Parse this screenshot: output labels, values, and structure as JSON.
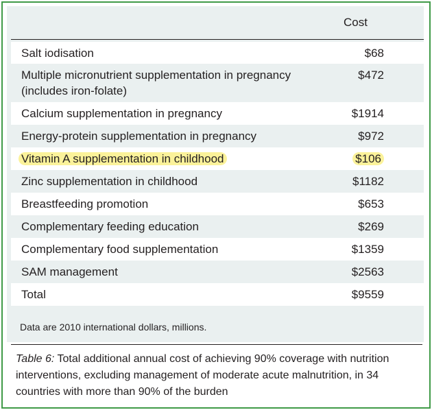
{
  "table": {
    "cost_header": "Cost",
    "rows": [
      {
        "label": "Salt iodisation",
        "cost": "$68"
      },
      {
        "label_line1": "Multiple micronutrient supplementation in pregnancy",
        "label_line2": "(includes iron-folate)",
        "cost": "$472"
      },
      {
        "label": "Calcium supplementation in pregnancy",
        "cost": "$1914"
      },
      {
        "label": "Energy-protein supplementation in pregnancy",
        "cost": "$972"
      },
      {
        "label": "Vitamin A supplementation in childhood",
        "cost": "$106",
        "highlight_color": "#fbf29a"
      },
      {
        "label": "Zinc supplementation in childhood",
        "cost": "$1182"
      },
      {
        "label": "Breastfeeding promotion",
        "cost": "$653"
      },
      {
        "label": "Complementary feeding education",
        "cost": "$269"
      },
      {
        "label": "Complementary food supplementation",
        "cost": "$1359"
      },
      {
        "label": "SAM management",
        "cost": "$2563"
      },
      {
        "label": "Total",
        "cost": "$9559"
      }
    ],
    "note": "Data are 2010 international dollars, millions."
  },
  "caption": {
    "lead": "Table 6:",
    "text": " Total additional annual cost of achieving 90% coverage with nutrition interventions, excluding management of moderate acute malnutrition, in 34 countries with more than 90% of the burden"
  },
  "colors": {
    "border": "#3f9a47",
    "panel_background": "#eaf0f0",
    "stripe": "#ffffff",
    "highlight": "#fbf29a"
  }
}
